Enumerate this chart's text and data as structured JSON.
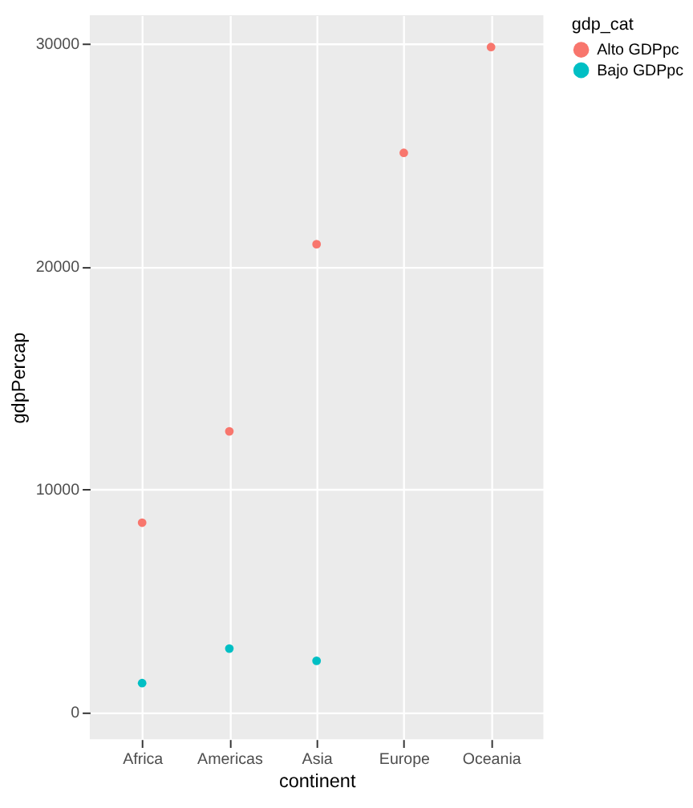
{
  "chart_data": {
    "type": "scatter",
    "xlabel": "continent",
    "ylabel": "gdpPercap",
    "legend_title": "gdp_cat",
    "categories": [
      "Africa",
      "Americas",
      "Asia",
      "Europe",
      "Oceania"
    ],
    "series": [
      {
        "name": "Alto GDPpc",
        "color": "#f8766d",
        "values": [
          8500,
          12600,
          21000,
          25100,
          29850
        ]
      },
      {
        "name": "Bajo GDPpc",
        "color": "#00bfc4",
        "values": [
          1300,
          2850,
          2300,
          null,
          null
        ]
      }
    ],
    "ylim": [
      -1220,
      31280
    ],
    "yticks": [
      0,
      10000,
      20000,
      30000
    ],
    "grid": true,
    "legend": "right",
    "marker": "circle"
  }
}
